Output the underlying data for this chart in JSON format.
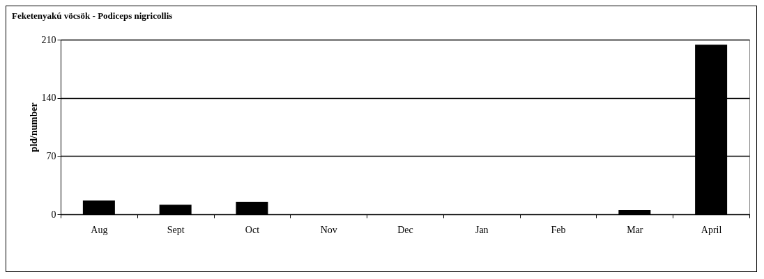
{
  "chart_data": {
    "type": "bar",
    "title": "Feketenyakú vöcsök - Podiceps nigricollis",
    "ylabel": "pld/number",
    "categories": [
      "Aug",
      "Sept",
      "Oct",
      "Nov",
      "Dec",
      "Jan",
      "Feb",
      "Mar",
      "April"
    ],
    "values": [
      16.5,
      11.5,
      15,
      0,
      0,
      0,
      0,
      5,
      204
    ],
    "color": "#000000",
    "ylim": [
      0,
      210
    ],
    "yticks": [
      0,
      70,
      140,
      210
    ],
    "grid": "y"
  }
}
